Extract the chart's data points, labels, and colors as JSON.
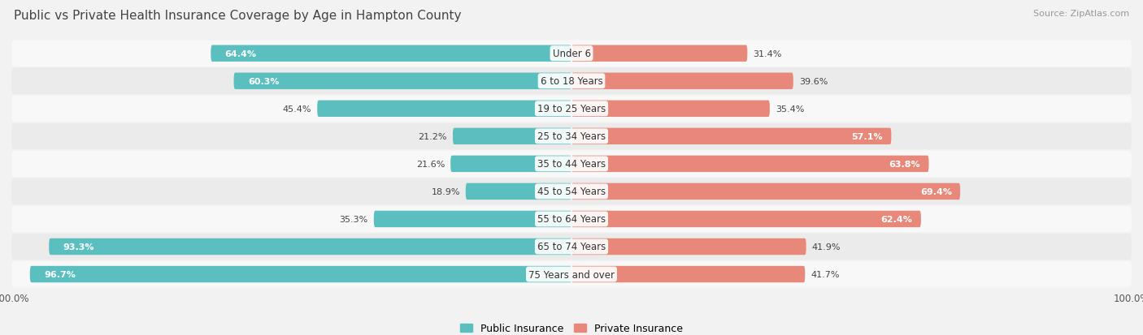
{
  "title": "Public vs Private Health Insurance Coverage by Age in Hampton County",
  "source": "Source: ZipAtlas.com",
  "categories": [
    "Under 6",
    "6 to 18 Years",
    "19 to 25 Years",
    "25 to 34 Years",
    "35 to 44 Years",
    "45 to 54 Years",
    "55 to 64 Years",
    "65 to 74 Years",
    "75 Years and over"
  ],
  "public_values": [
    64.4,
    60.3,
    45.4,
    21.2,
    21.6,
    18.9,
    35.3,
    93.3,
    96.7
  ],
  "private_values": [
    31.4,
    39.6,
    35.4,
    57.1,
    63.8,
    69.4,
    62.4,
    41.9,
    41.7
  ],
  "public_color": "#5bbfc0",
  "private_color": "#e8887a",
  "bg_color": "#f2f2f2",
  "row_bg_even": "#f8f8f8",
  "row_bg_odd": "#ebebeb",
  "title_fontsize": 11,
  "source_fontsize": 8,
  "label_fontsize": 8.5,
  "value_fontsize": 8.0,
  "xlim": 100.0
}
